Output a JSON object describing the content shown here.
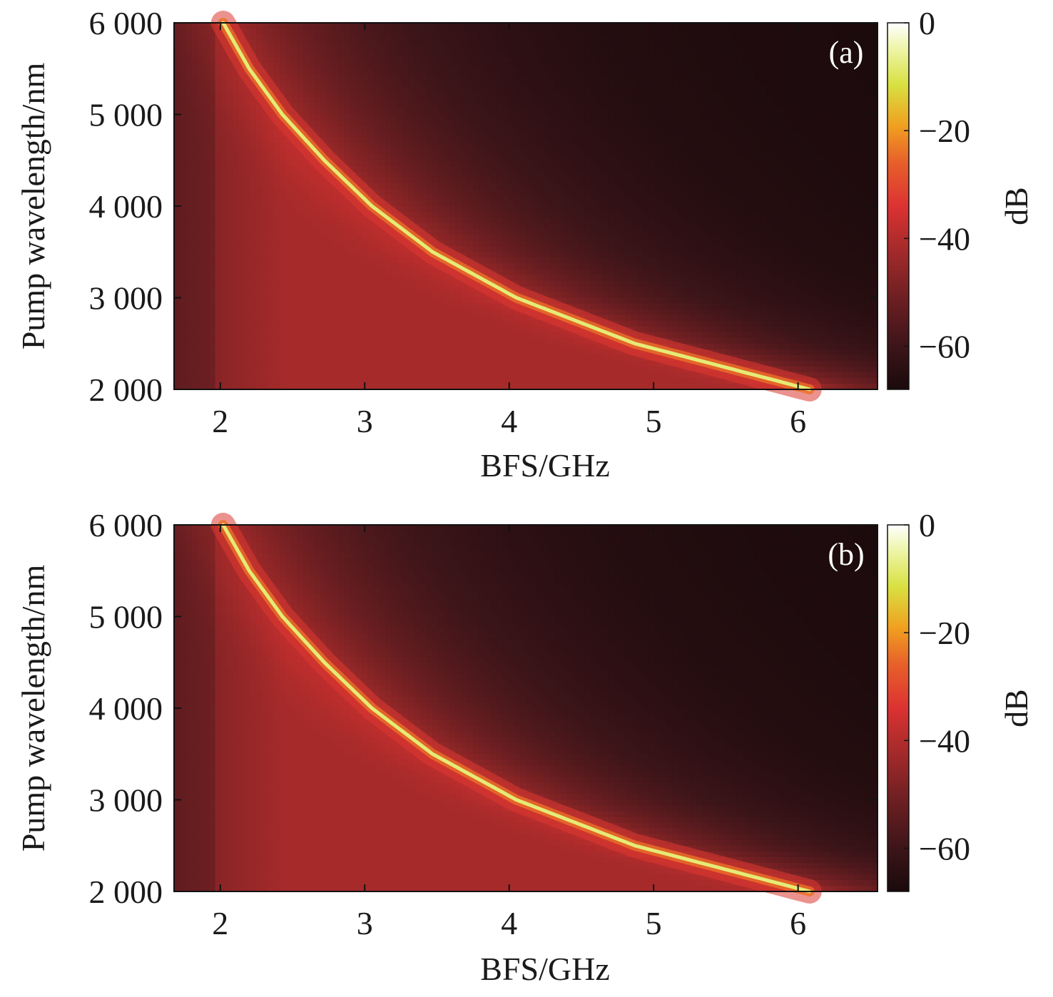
{
  "chart_data": [
    {
      "type": "heatmap",
      "panel_label": "(a)",
      "xlabel": "BFS/GHz",
      "ylabel": "Pump wavelength/nm",
      "xlim": [
        1.68,
        6.55
      ],
      "ylim": [
        2000,
        6000
      ],
      "x_ticks": [
        2,
        3,
        4,
        5,
        6
      ],
      "x_tick_labels": [
        "2",
        "3",
        "4",
        "5",
        "6"
      ],
      "y_ticks": [
        2000,
        3000,
        4000,
        5000,
        6000
      ],
      "y_tick_labels": [
        "2 000",
        "3 000",
        "4 000",
        "5 000",
        "6 000"
      ],
      "colorbar": {
        "label": "dB",
        "range": [
          -68,
          0
        ],
        "ticks": [
          0,
          -20,
          -40,
          -60
        ],
        "tick_labels": [
          "0",
          "−20",
          "−40",
          "−60"
        ],
        "colormap": "hot"
      },
      "peak_curve": {
        "description_units": "peak BFS (GHz) vs pump wavelength (nm), value 0 dB along curve",
        "points": [
          {
            "wavelength": 6000,
            "bfs": 2.02
          },
          {
            "wavelength": 5500,
            "bfs": 2.2
          },
          {
            "wavelength": 5000,
            "bfs": 2.43
          },
          {
            "wavelength": 4500,
            "bfs": 2.72
          },
          {
            "wavelength": 4000,
            "bfs": 3.05
          },
          {
            "wavelength": 3500,
            "bfs": 3.47
          },
          {
            "wavelength": 3000,
            "bfs": 4.05
          },
          {
            "wavelength": 2500,
            "bfs": 4.87
          },
          {
            "wavelength": 2000,
            "bfs": 6.08
          }
        ]
      },
      "background_level_db": -42,
      "far_field_level_db": -68
    },
    {
      "type": "heatmap",
      "panel_label": "(b)",
      "xlabel": "BFS/GHz",
      "ylabel": "Pump wavelength/nm",
      "xlim": [
        1.68,
        6.55
      ],
      "ylim": [
        2000,
        6000
      ],
      "x_ticks": [
        2,
        3,
        4,
        5,
        6
      ],
      "x_tick_labels": [
        "2",
        "3",
        "4",
        "5",
        "6"
      ],
      "y_ticks": [
        2000,
        3000,
        4000,
        5000,
        6000
      ],
      "y_tick_labels": [
        "2 000",
        "3 000",
        "4 000",
        "5 000",
        "6 000"
      ],
      "colorbar": {
        "label": "dB",
        "range": [
          -68,
          0
        ],
        "ticks": [
          0,
          -20,
          -40,
          -60
        ],
        "tick_labels": [
          "0",
          "−20",
          "−40",
          "−60"
        ],
        "colormap": "hot"
      },
      "peak_curve": {
        "description_units": "peak BFS (GHz) vs pump wavelength (nm), value 0 dB along curve",
        "points": [
          {
            "wavelength": 6000,
            "bfs": 2.02
          },
          {
            "wavelength": 5500,
            "bfs": 2.2
          },
          {
            "wavelength": 5000,
            "bfs": 2.43
          },
          {
            "wavelength": 4500,
            "bfs": 2.72
          },
          {
            "wavelength": 4000,
            "bfs": 3.05
          },
          {
            "wavelength": 3500,
            "bfs": 3.47
          },
          {
            "wavelength": 3000,
            "bfs": 4.05
          },
          {
            "wavelength": 2500,
            "bfs": 4.87
          },
          {
            "wavelength": 2000,
            "bfs": 6.08
          }
        ]
      },
      "background_level_db": -42,
      "far_field_level_db": -68
    }
  ]
}
